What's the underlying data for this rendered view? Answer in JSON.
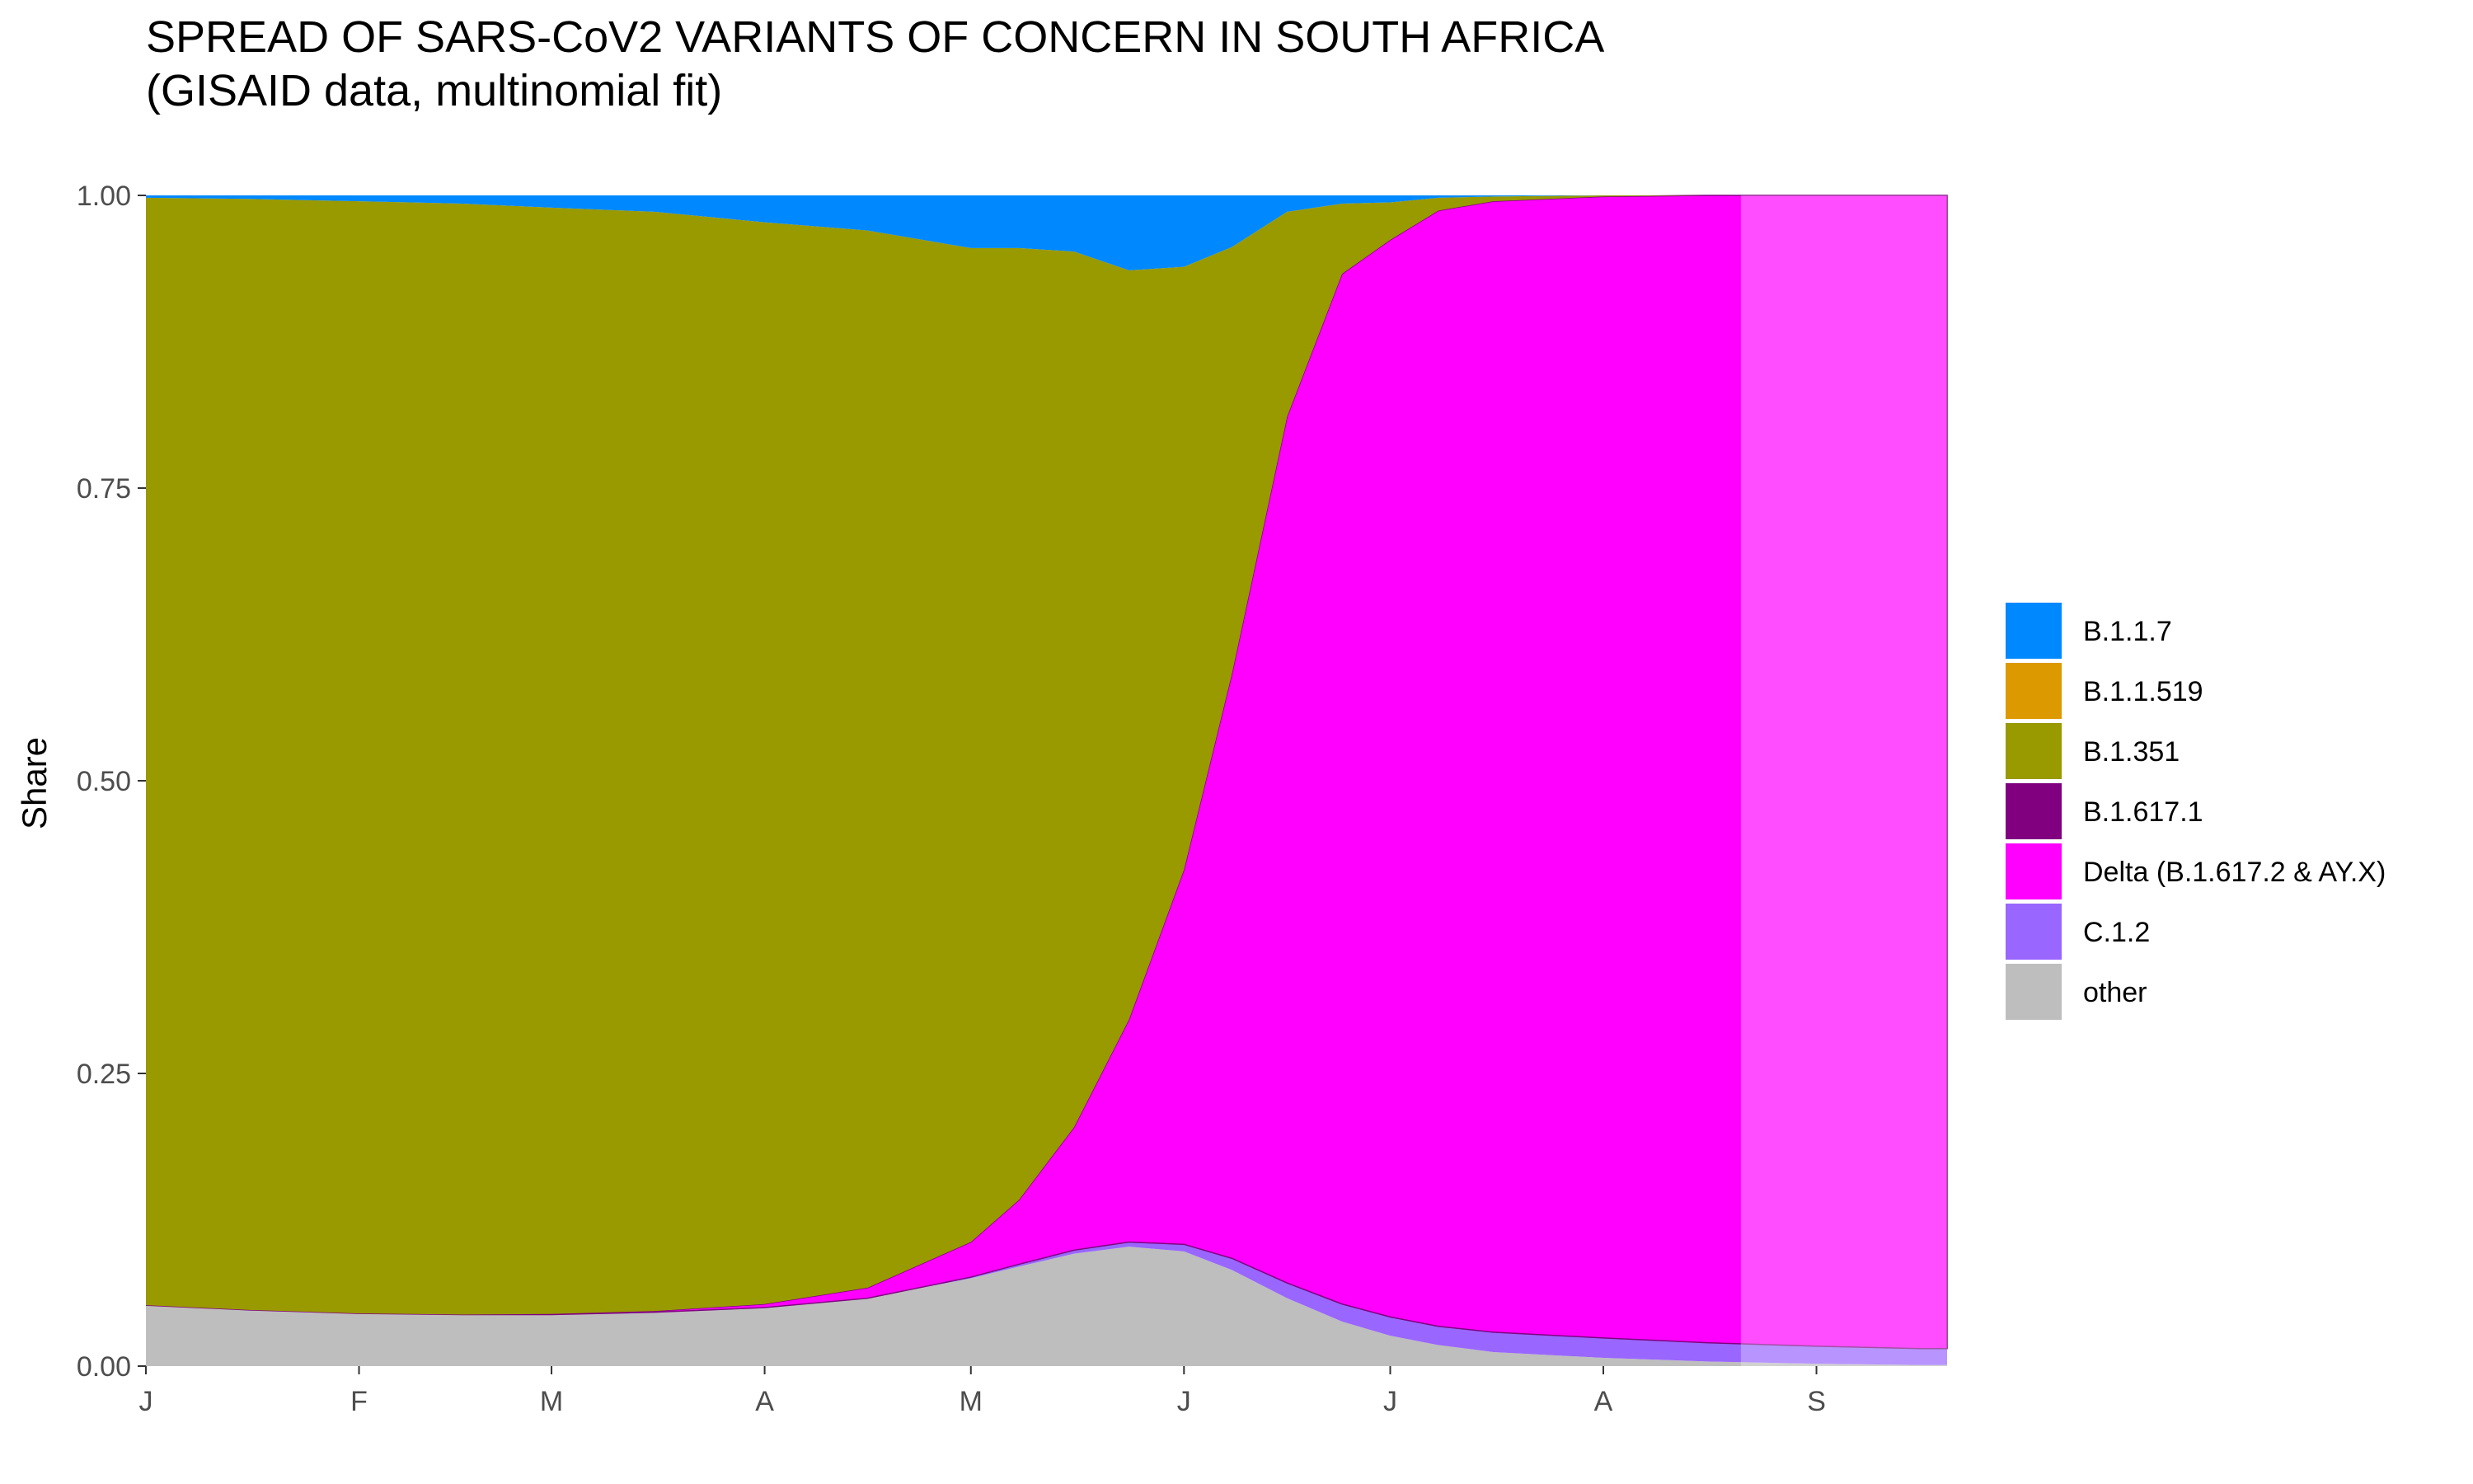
{
  "chart_data": {
    "type": "area",
    "stacked": true,
    "normalized": true,
    "title": "SPREAD OF SARS-CoV2 VARIANTS OF CONCERN IN SOUTH AFRICA",
    "subtitle": "(GISAID data, multinomial fit)",
    "xlabel": "",
    "ylabel": "Share",
    "x_tick_labels": [
      "J",
      "F",
      "M",
      "A",
      "M",
      "J",
      "J",
      "A",
      "S"
    ],
    "x_tick_dates": [
      "2021-01-01",
      "2021-02-01",
      "2021-03-01",
      "2021-04-01",
      "2021-05-01",
      "2021-06-01",
      "2021-07-01",
      "2021-08-01",
      "2021-09-01"
    ],
    "y_ticks": [
      "0.00",
      "0.25",
      "0.50",
      "0.75",
      "1.00"
    ],
    "ylim": [
      0,
      1
    ],
    "grid": false,
    "legend_position": "right",
    "data_end_date": "2021-08-21",
    "x": [
      "2021-01-01",
      "2021-01-16",
      "2021-02-01",
      "2021-02-16",
      "2021-03-01",
      "2021-03-16",
      "2021-04-01",
      "2021-04-16",
      "2021-05-01",
      "2021-05-08",
      "2021-05-16",
      "2021-05-24",
      "2021-06-01",
      "2021-06-08",
      "2021-06-16",
      "2021-06-24",
      "2021-07-01",
      "2021-07-08",
      "2021-07-16",
      "2021-08-01",
      "2021-08-16",
      "2021-09-01",
      "2021-09-16",
      "2021-09-20"
    ],
    "series": [
      {
        "name": "other",
        "color": "#bebebe",
        "values": [
          0.052,
          0.048,
          0.045,
          0.044,
          0.044,
          0.046,
          0.05,
          0.058,
          0.075,
          0.085,
          0.096,
          0.102,
          0.098,
          0.082,
          0.058,
          0.038,
          0.026,
          0.018,
          0.012,
          0.007,
          0.004,
          0.002,
          0.001,
          0.001
        ]
      },
      {
        "name": "C.1.2",
        "color": "#9966ff",
        "values": [
          0,
          0,
          0,
          0,
          0,
          0,
          0,
          0,
          0.001,
          0.002,
          0.003,
          0.004,
          0.006,
          0.01,
          0.013,
          0.015,
          0.016,
          0.016,
          0.017,
          0.017,
          0.016,
          0.015,
          0.014,
          0.014
        ]
      },
      {
        "name": "Delta (B.1.617.2 & AY.X)",
        "color": "#ff00ff",
        "values": [
          0,
          0,
          0,
          0,
          0.0005,
          0.001,
          0.003,
          0.009,
          0.03,
          0.055,
          0.105,
          0.19,
          0.32,
          0.5,
          0.74,
          0.88,
          0.92,
          0.953,
          0.966,
          0.975,
          0.98,
          0.983,
          0.985,
          0.985
        ]
      },
      {
        "name": "B.1.617.1",
        "color": "#800080",
        "values": [
          0,
          0,
          0,
          0,
          0,
          0,
          0,
          0,
          0,
          0,
          0,
          0,
          0,
          0,
          0,
          0,
          0,
          0,
          0,
          0,
          0,
          0,
          0,
          0
        ]
      },
      {
        "name": "B.1.351",
        "color": "#999900",
        "values": [
          0.946,
          0.949,
          0.95,
          0.949,
          0.945,
          0.939,
          0.924,
          0.903,
          0.849,
          0.813,
          0.748,
          0.64,
          0.515,
          0.364,
          0.175,
          0.06,
          0.032,
          0.011,
          0.004,
          0.001,
          0,
          0,
          0,
          0
        ]
      },
      {
        "name": "B.1.1.519",
        "color": "#dd9900",
        "values": [
          0,
          0,
          0,
          0,
          0,
          0,
          0,
          0,
          0,
          0,
          0,
          0,
          0,
          0,
          0,
          0,
          0,
          0,
          0,
          0,
          0,
          0,
          0,
          0
        ]
      },
      {
        "name": "B.1.1.7",
        "color": "#0088ff",
        "values": [
          0.002,
          0.003,
          0.005,
          0.007,
          0.0105,
          0.014,
          0.023,
          0.03,
          0.045,
          0.045,
          0.048,
          0.064,
          0.061,
          0.044,
          0.014,
          0.007,
          0.006,
          0.002,
          0.001,
          0,
          0,
          0,
          0,
          0
        ]
      }
    ],
    "legend_order": [
      "B.1.1.7",
      "B.1.1.519",
      "B.1.351",
      "B.1.617.1",
      "Delta (B.1.617.2 & AY.X)",
      "C.1.2",
      "other"
    ]
  }
}
